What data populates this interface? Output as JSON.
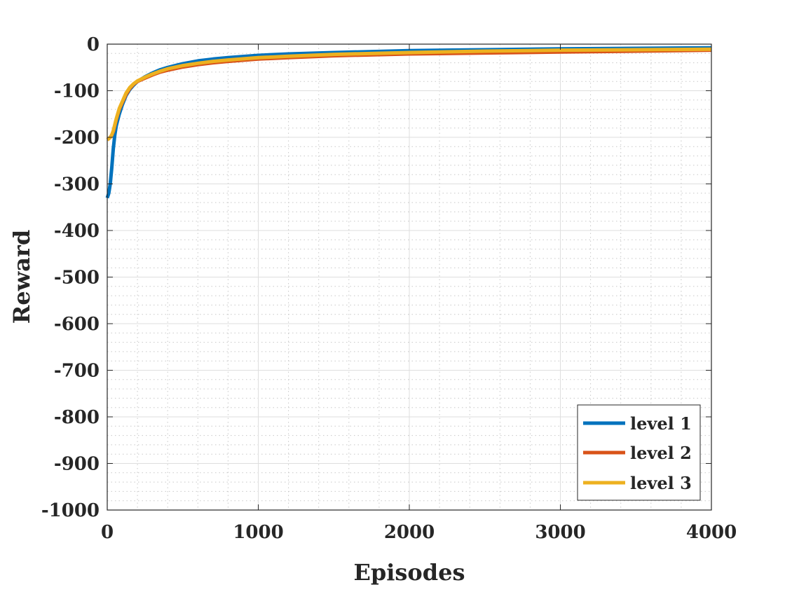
{
  "chart_data": {
    "type": "line",
    "title": "",
    "xlabel": "Episodes",
    "ylabel": "Reward",
    "xlim": [
      0,
      4000
    ],
    "ylim": [
      -1000,
      0
    ],
    "xticks": [
      0,
      1000,
      2000,
      3000,
      4000
    ],
    "xtick_labels": [
      "0",
      "1000",
      "2000",
      "3000",
      "4000"
    ],
    "yticks": [
      -1000,
      -900,
      -800,
      -700,
      -600,
      -500,
      -400,
      -300,
      -200,
      -100,
      0
    ],
    "ytick_labels": [
      "-1000",
      "-900",
      "-800",
      "-700",
      "-600",
      "-500",
      "-400",
      "-300",
      "-200",
      "-100",
      "0"
    ],
    "grid": true,
    "minor_grid": true,
    "legend_position": "bottom-right",
    "series": [
      {
        "name": "level 1",
        "color": "#0072BD",
        "x": [
          0,
          10,
          20,
          30,
          40,
          50,
          60,
          80,
          100,
          125,
          150,
          175,
          200,
          250,
          300,
          350,
          400,
          500,
          600,
          700,
          800,
          1000,
          1200,
          1500,
          2000,
          2500,
          3000,
          3500,
          4000
        ],
        "y": [
          -330,
          -320,
          -300,
          -265,
          -225,
          -195,
          -175,
          -150,
          -130,
          -110,
          -97,
          -88,
          -80,
          -70,
          -62,
          -55,
          -50,
          -42,
          -36,
          -32,
          -29,
          -24,
          -21,
          -18,
          -14,
          -12,
          -10,
          -9,
          -8
        ]
      },
      {
        "name": "level 2",
        "color": "#D95319",
        "x": [
          0,
          10,
          20,
          30,
          40,
          50,
          60,
          80,
          100,
          125,
          150,
          175,
          200,
          250,
          300,
          350,
          400,
          500,
          600,
          700,
          800,
          1000,
          1200,
          1500,
          2000,
          2500,
          3000,
          3500,
          4000
        ],
        "y": [
          -205,
          -203,
          -200,
          -195,
          -188,
          -175,
          -162,
          -140,
          -125,
          -108,
          -95,
          -86,
          -80,
          -73,
          -66,
          -60,
          -56,
          -49,
          -44,
          -40,
          -37,
          -32,
          -29,
          -25,
          -21,
          -19,
          -17,
          -15,
          -13
        ]
      },
      {
        "name": "level 3",
        "color": "#EDB120",
        "x": [
          0,
          10,
          20,
          30,
          40,
          50,
          60,
          80,
          100,
          125,
          150,
          175,
          200,
          250,
          300,
          350,
          400,
          500,
          600,
          700,
          800,
          1000,
          1200,
          1500,
          2000,
          2500,
          3000,
          3500,
          4000
        ],
        "y": [
          -205,
          -203,
          -200,
          -195,
          -186,
          -173,
          -160,
          -138,
          -123,
          -105,
          -93,
          -85,
          -79,
          -71,
          -64,
          -58,
          -53,
          -46,
          -41,
          -37,
          -34,
          -29,
          -26,
          -22,
          -18,
          -15,
          -13,
          -12,
          -11
        ]
      }
    ]
  }
}
